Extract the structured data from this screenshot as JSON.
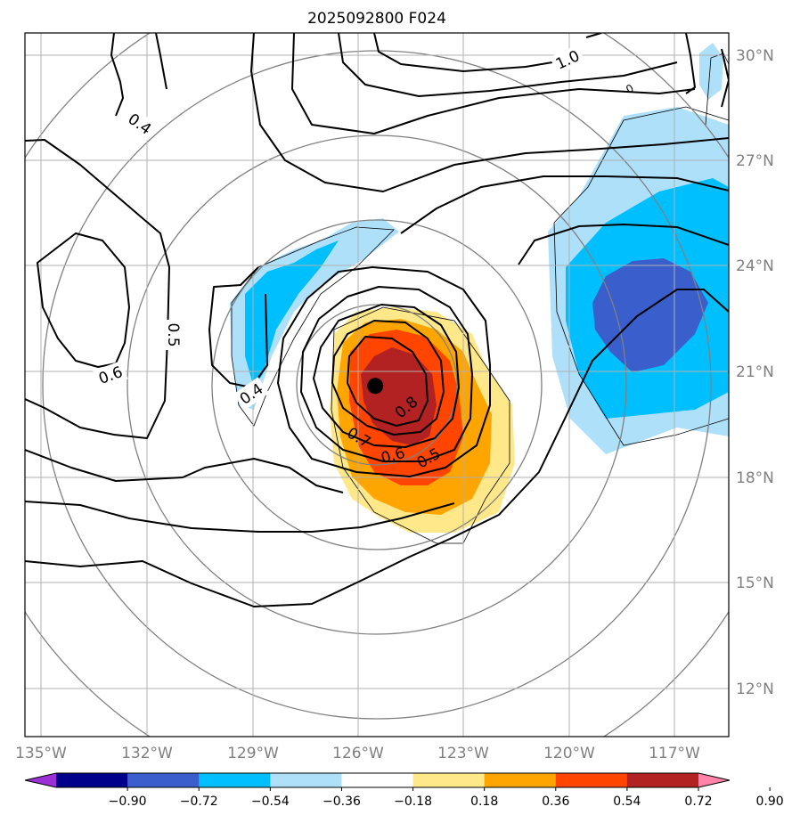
{
  "title": "2025092800 F024",
  "map": {
    "lon_ticks": [
      "135°W",
      "132°W",
      "129°W",
      "126°W",
      "123°W",
      "120°W",
      "117°W"
    ],
    "lat_ticks": [
      "30°N",
      "27°N",
      "24°N",
      "21°N",
      "18°N",
      "15°N",
      "12°N"
    ],
    "contour_labels": [
      "0.4",
      "0.5",
      "0.6",
      "0.4",
      "0.8",
      "0.7",
      "0.6",
      "0.5",
      "1.0",
      "0"
    ],
    "center_marker": {
      "lon": -125.5,
      "lat": 20.6
    },
    "grid": true,
    "range_rings": true
  },
  "colorbar": {
    "tick_labels": [
      "−0.90",
      "−0.72",
      "−0.54",
      "−0.36",
      "−0.18",
      "0.18",
      "0.36",
      "0.54",
      "0.72",
      "0.90"
    ],
    "colors": [
      "#9b30d6",
      "#00008b",
      "#3a5fcd",
      "#00bfff",
      "#aee0fa",
      "#ffffff",
      "#ffe88a",
      "#ffa500",
      "#ff4500",
      "#b22222",
      "#ff82ab"
    ]
  }
}
